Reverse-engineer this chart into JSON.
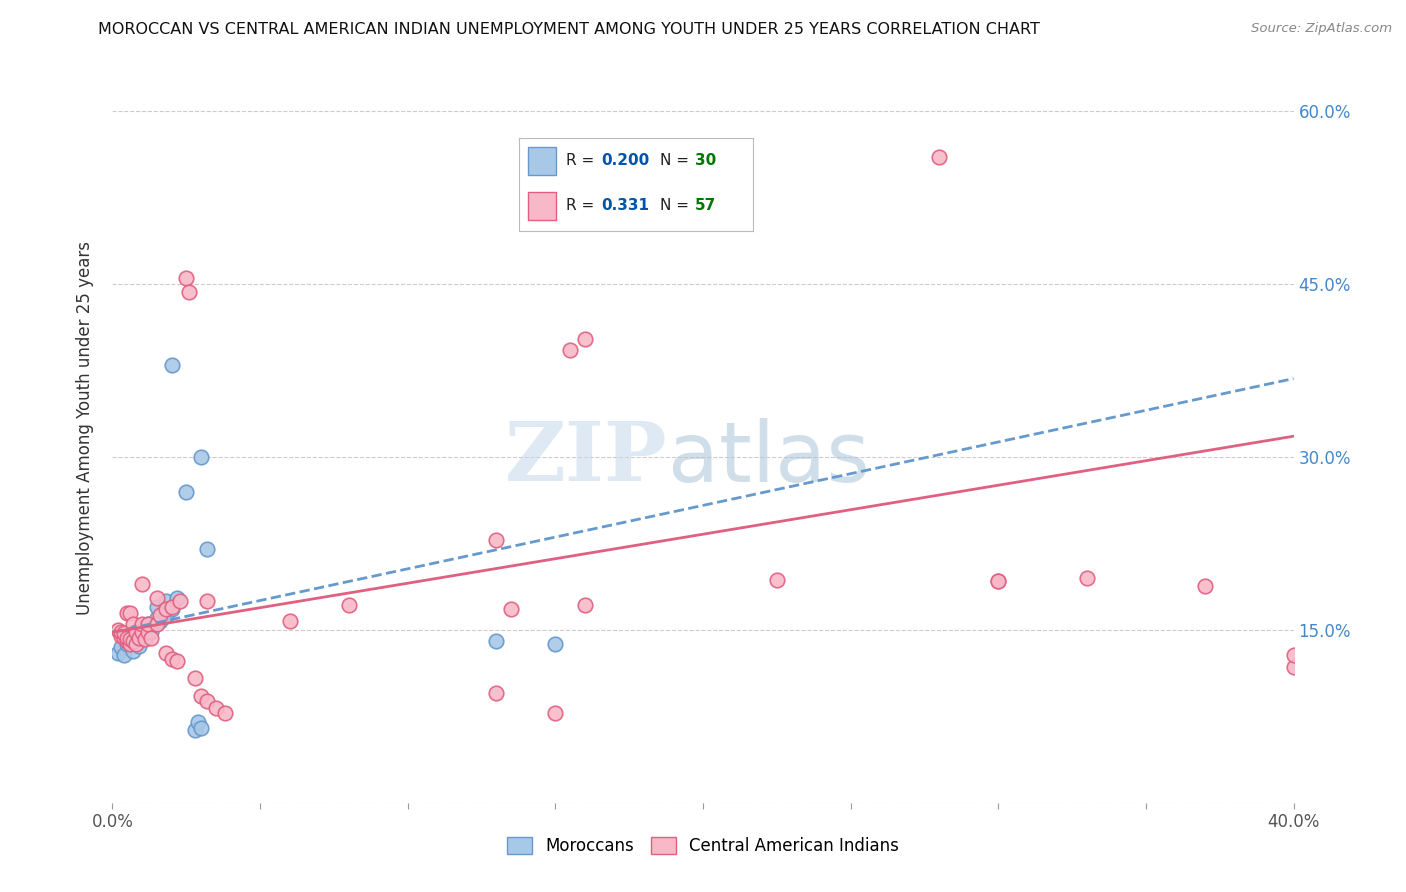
{
  "title": "MOROCCAN VS CENTRAL AMERICAN INDIAN UNEMPLOYMENT AMONG YOUTH UNDER 25 YEARS CORRELATION CHART",
  "source": "Source: ZipAtlas.com",
  "ylabel": "Unemployment Among Youth under 25 years",
  "xlim": [
    0.0,
    0.4
  ],
  "ylim": [
    0.0,
    0.65
  ],
  "xticks": [
    0.0,
    0.05,
    0.1,
    0.15,
    0.2,
    0.25,
    0.3,
    0.35,
    0.4
  ],
  "yticks": [
    0.0,
    0.15,
    0.3,
    0.45,
    0.6
  ],
  "moroccan_color": "#a8c8e8",
  "moroccan_edge": "#6699cc",
  "central_american_color": "#f8b8c8",
  "central_american_edge": "#e06080",
  "moroccan_R": 0.2,
  "moroccan_N": 30,
  "central_american_R": 0.331,
  "central_american_N": 57,
  "legend_R_color": "#0055aa",
  "legend_N_color": "#007700",
  "background_color": "#ffffff",
  "moroccan_line_color": "#6699cc",
  "central_line_color": "#e06080",
  "moroccan_scatter": [
    [
      0.002,
      0.13
    ],
    [
      0.003,
      0.135
    ],
    [
      0.004,
      0.128
    ],
    [
      0.005,
      0.138
    ],
    [
      0.005,
      0.14
    ],
    [
      0.006,
      0.145
    ],
    [
      0.007,
      0.132
    ],
    [
      0.008,
      0.148
    ],
    [
      0.009,
      0.136
    ],
    [
      0.01,
      0.142
    ],
    [
      0.011,
      0.15
    ],
    [
      0.012,
      0.155
    ],
    [
      0.013,
      0.148
    ],
    [
      0.015,
      0.16
    ],
    [
      0.015,
      0.17
    ],
    [
      0.016,
      0.158
    ],
    [
      0.017,
      0.165
    ],
    [
      0.018,
      0.175
    ],
    [
      0.018,
      0.162
    ],
    [
      0.02,
      0.168
    ],
    [
      0.02,
      0.38
    ],
    [
      0.022,
      0.178
    ],
    [
      0.025,
      0.27
    ],
    [
      0.028,
      0.063
    ],
    [
      0.029,
      0.07
    ],
    [
      0.03,
      0.3
    ],
    [
      0.03,
      0.065
    ],
    [
      0.032,
      0.22
    ],
    [
      0.13,
      0.14
    ],
    [
      0.15,
      0.138
    ]
  ],
  "central_american_scatter": [
    [
      0.002,
      0.15
    ],
    [
      0.003,
      0.145
    ],
    [
      0.003,
      0.148
    ],
    [
      0.004,
      0.143
    ],
    [
      0.004,
      0.147
    ],
    [
      0.005,
      0.14
    ],
    [
      0.005,
      0.143
    ],
    [
      0.005,
      0.165
    ],
    [
      0.006,
      0.138
    ],
    [
      0.006,
      0.142
    ],
    [
      0.006,
      0.165
    ],
    [
      0.007,
      0.14
    ],
    [
      0.007,
      0.155
    ],
    [
      0.008,
      0.138
    ],
    [
      0.008,
      0.148
    ],
    [
      0.009,
      0.143
    ],
    [
      0.01,
      0.148
    ],
    [
      0.01,
      0.155
    ],
    [
      0.01,
      0.19
    ],
    [
      0.011,
      0.142
    ],
    [
      0.012,
      0.148
    ],
    [
      0.012,
      0.155
    ],
    [
      0.013,
      0.143
    ],
    [
      0.015,
      0.155
    ],
    [
      0.015,
      0.178
    ],
    [
      0.016,
      0.163
    ],
    [
      0.018,
      0.13
    ],
    [
      0.018,
      0.168
    ],
    [
      0.02,
      0.125
    ],
    [
      0.02,
      0.17
    ],
    [
      0.022,
      0.123
    ],
    [
      0.023,
      0.175
    ],
    [
      0.025,
      0.455
    ],
    [
      0.026,
      0.443
    ],
    [
      0.028,
      0.108
    ],
    [
      0.03,
      0.093
    ],
    [
      0.032,
      0.175
    ],
    [
      0.032,
      0.088
    ],
    [
      0.035,
      0.082
    ],
    [
      0.038,
      0.078
    ],
    [
      0.06,
      0.158
    ],
    [
      0.08,
      0.172
    ],
    [
      0.13,
      0.095
    ],
    [
      0.13,
      0.228
    ],
    [
      0.135,
      0.168
    ],
    [
      0.15,
      0.078
    ],
    [
      0.155,
      0.393
    ],
    [
      0.16,
      0.172
    ],
    [
      0.16,
      0.402
    ],
    [
      0.225,
      0.193
    ],
    [
      0.28,
      0.56
    ],
    [
      0.3,
      0.192
    ],
    [
      0.3,
      0.192
    ],
    [
      0.33,
      0.195
    ],
    [
      0.37,
      0.188
    ],
    [
      0.4,
      0.118
    ],
    [
      0.4,
      0.128
    ]
  ]
}
